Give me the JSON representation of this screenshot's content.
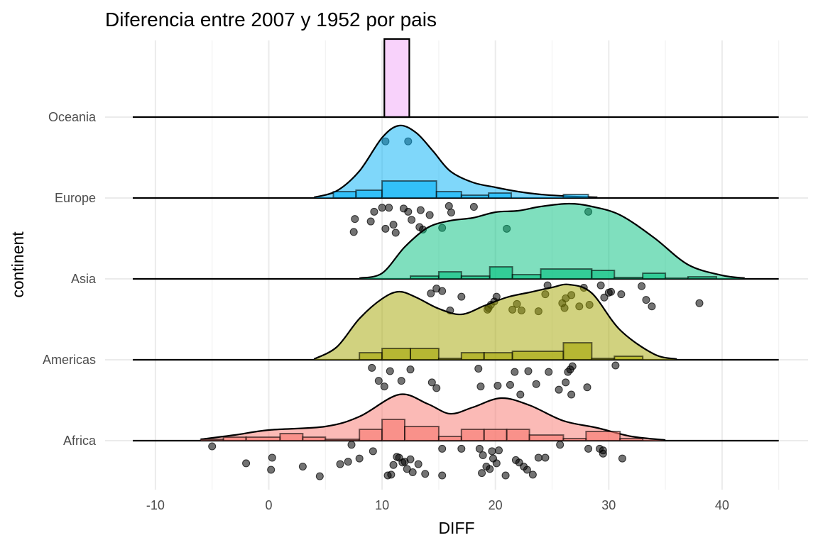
{
  "chart_data": {
    "type": "ridgeline-raincloud",
    "title": "Diferencia entre 2007 y 1952 por pais",
    "xlabel": "DIFF",
    "ylabel": "continent",
    "xlim": [
      -12,
      45
    ],
    "x_ticks": [
      -10,
      0,
      10,
      20,
      30,
      40
    ],
    "x_tick_labels": [
      "-10",
      "0",
      "10",
      "20",
      "30",
      "40"
    ],
    "grid": true,
    "categories": [
      "Africa",
      "Americas",
      "Asia",
      "Europe",
      "Oceania"
    ],
    "series": [
      {
        "name": "Africa",
        "color": "#F8766D",
        "density": [
          [
            -6,
            0.02
          ],
          [
            -3,
            0.08
          ],
          [
            0,
            0.15
          ],
          [
            5,
            0.2
          ],
          [
            8,
            0.34
          ],
          [
            11.5,
            0.65
          ],
          [
            14,
            0.52
          ],
          [
            16,
            0.38
          ],
          [
            18,
            0.47
          ],
          [
            20.5,
            0.6
          ],
          [
            23,
            0.5
          ],
          [
            26,
            0.28
          ],
          [
            29,
            0.18
          ],
          [
            32,
            0.06
          ],
          [
            35,
            0.01
          ]
        ],
        "histogram": [
          [
            -6,
            -4,
            0.02
          ],
          [
            -4,
            -2,
            0.05
          ],
          [
            -2,
            1,
            0.05
          ],
          [
            1,
            3,
            0.1
          ],
          [
            3,
            5,
            0.05
          ],
          [
            5,
            8,
            0.02
          ],
          [
            8,
            10,
            0.16
          ],
          [
            10,
            12,
            0.3
          ],
          [
            12,
            15,
            0.2
          ],
          [
            15,
            17,
            0.06
          ],
          [
            17,
            19,
            0.16
          ],
          [
            19,
            21,
            0.16
          ],
          [
            21,
            23,
            0.16
          ],
          [
            23,
            26,
            0.08
          ],
          [
            26,
            28,
            0.03
          ],
          [
            28,
            31,
            0.13
          ],
          [
            31,
            33,
            0.03
          ]
        ],
        "points": [
          [
            -5,
            -0.07
          ],
          [
            -2,
            -0.28
          ],
          [
            0.2,
            -0.36
          ],
          [
            0.3,
            -0.21
          ],
          [
            3,
            -0.32
          ],
          [
            4.5,
            -0.44
          ],
          [
            6.3,
            -0.29
          ],
          [
            7,
            -0.26
          ],
          [
            7.3,
            -0.05
          ],
          [
            8,
            -0.22
          ],
          [
            9.2,
            -0.13
          ],
          [
            10.5,
            -0.43
          ],
          [
            10.8,
            -0.42
          ],
          [
            11,
            -0.3
          ],
          [
            11.3,
            -0.2
          ],
          [
            11.5,
            -0.21
          ],
          [
            11.8,
            -0.27
          ],
          [
            12,
            -0.26
          ],
          [
            12.2,
            -0.35
          ],
          [
            12.5,
            -0.23
          ],
          [
            12.7,
            -0.39
          ],
          [
            13.2,
            -0.29
          ],
          [
            13.8,
            -0.41
          ],
          [
            15.3,
            -0.1
          ],
          [
            15.3,
            -0.43
          ],
          [
            17,
            -0.1
          ],
          [
            18.6,
            -0.1
          ],
          [
            18.8,
            -0.4
          ],
          [
            18.9,
            -0.18
          ],
          [
            19.2,
            -0.32
          ],
          [
            19.5,
            -0.35
          ],
          [
            19.7,
            -0.13
          ],
          [
            19.8,
            -0.22
          ],
          [
            20.1,
            -0.28
          ],
          [
            20.3,
            -0.12
          ],
          [
            20.9,
            -0.43
          ],
          [
            21.8,
            -0.24
          ],
          [
            22.1,
            -0.27
          ],
          [
            22.5,
            -0.32
          ],
          [
            22.8,
            -0.36
          ],
          [
            23.3,
            -0.42
          ],
          [
            23.8,
            -0.21
          ],
          [
            24.4,
            -0.21
          ],
          [
            25.7,
            -0.05
          ],
          [
            28.2,
            -0.1
          ],
          [
            29.2,
            -0.1
          ],
          [
            29.5,
            -0.12
          ],
          [
            29.5,
            -0.16
          ],
          [
            31.2,
            -0.22
          ]
        ]
      },
      {
        "name": "Americas",
        "color": "#A3A500",
        "density": [
          [
            4,
            0.01
          ],
          [
            6,
            0.18
          ],
          [
            8,
            0.58
          ],
          [
            10,
            0.86
          ],
          [
            11.5,
            0.96
          ],
          [
            13,
            0.88
          ],
          [
            15,
            0.72
          ],
          [
            17,
            0.64
          ],
          [
            19,
            0.76
          ],
          [
            21,
            0.88
          ],
          [
            23,
            0.95
          ],
          [
            25,
            1.02
          ],
          [
            26.5,
            1.06
          ],
          [
            28.5,
            0.94
          ],
          [
            31,
            0.42
          ],
          [
            34,
            0.08
          ],
          [
            36,
            0.01
          ]
        ],
        "histogram": [
          [
            8,
            10,
            0.1
          ],
          [
            10,
            12.5,
            0.16
          ],
          [
            12.5,
            15,
            0.16
          ],
          [
            15,
            17,
            0.02
          ],
          [
            17,
            19,
            0.1
          ],
          [
            19,
            21.5,
            0.1
          ],
          [
            21.5,
            26,
            0.12
          ],
          [
            26,
            28.5,
            0.24
          ],
          [
            28.5,
            30.5,
            0.02
          ],
          [
            30.5,
            33,
            0.05
          ]
        ],
        "points": [
          [
            9.1,
            -0.1
          ],
          [
            9.7,
            -0.26
          ],
          [
            10.2,
            -0.33
          ],
          [
            10.7,
            -0.14
          ],
          [
            11.7,
            -0.26
          ],
          [
            12.5,
            -0.12
          ],
          [
            14.4,
            -0.28
          ],
          [
            14.8,
            -0.35
          ],
          [
            18.5,
            -0.11
          ],
          [
            18.7,
            -0.33
          ],
          [
            20.2,
            -0.32
          ],
          [
            21.3,
            -0.31
          ],
          [
            21.7,
            -0.15
          ],
          [
            22.2,
            -0.43
          ],
          [
            22.9,
            -0.14
          ],
          [
            23.6,
            -0.3
          ],
          [
            24.7,
            -0.15
          ],
          [
            25.6,
            -0.37
          ],
          [
            26.2,
            -0.28
          ],
          [
            26.4,
            -0.15
          ],
          [
            26.6,
            -0.12
          ],
          [
            26.7,
            -0.43
          ],
          [
            26.8,
            -0.08
          ],
          [
            28.1,
            -0.34
          ],
          [
            30.6,
            -0.07
          ]
        ]
      },
      {
        "name": "Asia",
        "color": "#00BF7D",
        "density": [
          [
            8,
            0.01
          ],
          [
            10,
            0.08
          ],
          [
            12,
            0.45
          ],
          [
            14,
            0.72
          ],
          [
            16,
            0.82
          ],
          [
            18,
            0.86
          ],
          [
            20,
            0.94
          ],
          [
            22,
            0.96
          ],
          [
            24,
            1.02
          ],
          [
            26.5,
            1.06
          ],
          [
            28.5,
            1.02
          ],
          [
            31,
            0.9
          ],
          [
            34,
            0.58
          ],
          [
            37,
            0.2
          ],
          [
            40,
            0.05
          ],
          [
            42,
            0.01
          ]
        ],
        "histogram": [
          [
            12.5,
            15,
            0.04
          ],
          [
            15,
            17,
            0.1
          ],
          [
            17,
            19.5,
            0.04
          ],
          [
            19.5,
            21.5,
            0.17
          ],
          [
            21.5,
            24,
            0.06
          ],
          [
            24,
            28.5,
            0.14
          ],
          [
            28.5,
            30.5,
            0.12
          ],
          [
            30.5,
            33,
            0.02
          ],
          [
            33,
            35,
            0.08
          ],
          [
            35,
            37,
            0.01
          ],
          [
            37,
            39.5,
            0.03
          ]
        ],
        "points": [
          [
            14.3,
            -0.18
          ],
          [
            14.8,
            -0.12
          ],
          [
            15.3,
            -0.15
          ],
          [
            16,
            -0.39
          ],
          [
            17,
            -0.22
          ],
          [
            19.3,
            -0.38
          ],
          [
            19.4,
            -0.36
          ],
          [
            19.6,
            -0.32
          ],
          [
            19.9,
            -0.28
          ],
          [
            20.1,
            -0.22
          ],
          [
            21.5,
            -0.38
          ],
          [
            21.9,
            -0.31
          ],
          [
            22.3,
            -0.39
          ],
          [
            23.8,
            -0.4
          ],
          [
            24.4,
            -0.19
          ],
          [
            24.6,
            -0.08
          ],
          [
            25.9,
            -0.3
          ],
          [
            26.1,
            -0.36
          ],
          [
            26.2,
            -0.24
          ],
          [
            26.7,
            -0.2
          ],
          [
            27.4,
            -0.34
          ],
          [
            27.8,
            -0.11
          ],
          [
            28.3,
            -0.32
          ],
          [
            29.3,
            -0.08
          ],
          [
            29.6,
            -0.23
          ],
          [
            30,
            -0.17
          ],
          [
            30.2,
            -0.16
          ],
          [
            31.1,
            -0.19
          ],
          [
            32.9,
            -0.09
          ],
          [
            33.3,
            -0.26
          ],
          [
            33.8,
            -0.34
          ],
          [
            38,
            -0.3
          ]
        ]
      },
      {
        "name": "Europe",
        "color": "#00B0F6",
        "density": [
          [
            4,
            0.01
          ],
          [
            6,
            0.1
          ],
          [
            8,
            0.38
          ],
          [
            10,
            0.85
          ],
          [
            11.5,
            1.02
          ],
          [
            13,
            0.92
          ],
          [
            14.5,
            0.66
          ],
          [
            16,
            0.38
          ],
          [
            18,
            0.22
          ],
          [
            20,
            0.15
          ],
          [
            22,
            0.09
          ],
          [
            24,
            0.05
          ],
          [
            27,
            0.02
          ],
          [
            29,
            0.01
          ]
        ],
        "histogram": [
          [
            5.7,
            7.7,
            0.09
          ],
          [
            7.7,
            10,
            0.11
          ],
          [
            10,
            14.8,
            0.24
          ],
          [
            14.8,
            17,
            0.09
          ],
          [
            17,
            19.4,
            0.04
          ],
          [
            19.4,
            21.4,
            0.07
          ],
          [
            26,
            28.2,
            0.05
          ]
        ],
        "points": [
          [
            7.5,
            -0.42
          ],
          [
            7.6,
            -0.26
          ],
          [
            9,
            -0.29
          ],
          [
            9.3,
            -0.17
          ],
          [
            10,
            -0.12
          ],
          [
            10.3,
            -0.38
          ],
          [
            10.6,
            -0.12
          ],
          [
            11,
            -0.33
          ],
          [
            11.2,
            -0.43
          ],
          [
            11.9,
            -0.13
          ],
          [
            12.3,
            -0.17
          ],
          [
            12.6,
            -0.27
          ],
          [
            13.3,
            -0.36
          ],
          [
            13.6,
            -0.39
          ],
          [
            13.4,
            -0.15
          ],
          [
            14.2,
            -0.21
          ],
          [
            15.3,
            -0.37
          ],
          [
            15.9,
            -0.1
          ],
          [
            16.1,
            -0.18
          ],
          [
            18.1,
            -0.11
          ],
          [
            21,
            -0.38
          ],
          [
            28.2,
            -0.17
          ]
        ]
      },
      {
        "name": "Oceania",
        "color": "#E76BF3",
        "density": [],
        "histogram": [
          [
            10.2,
            12.4,
            1.1
          ]
        ],
        "points": [
          [
            10.3,
            -0.3
          ],
          [
            12.3,
            -0.3
          ]
        ]
      }
    ]
  }
}
